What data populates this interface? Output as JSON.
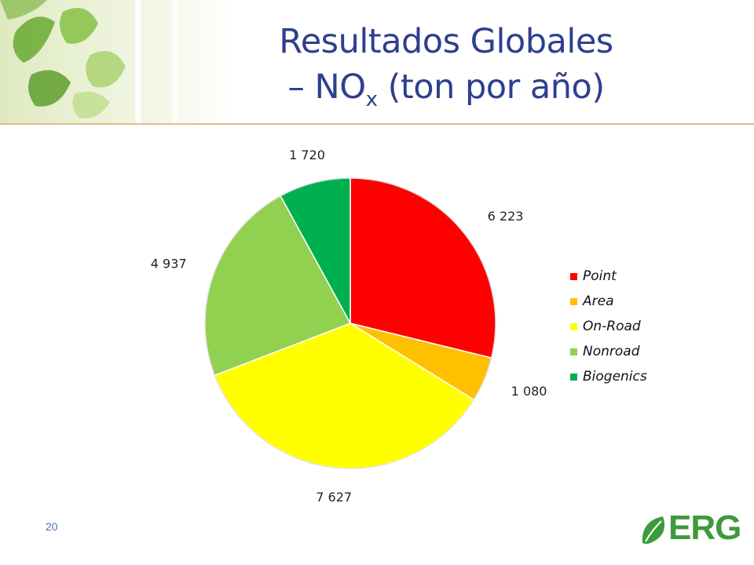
{
  "slide": {
    "title_line1": "Resultados Globales",
    "title_line2_prefix": "– NO",
    "title_line2_sub": "x",
    "title_line2_suffix": " (ton por año)",
    "page_number": "20",
    "logo_text": "ERG"
  },
  "chart_data": {
    "type": "pie",
    "categories": [
      "Point",
      "Area",
      "On-Road",
      "Nonroad",
      "Biogenics"
    ],
    "values": [
      6223,
      1080,
      7627,
      4937,
      1720
    ],
    "value_labels": [
      "6 223",
      "1 080",
      "7 627",
      "4 937",
      "1 720"
    ],
    "colors": [
      "#ff0000",
      "#ffc000",
      "#ffff00",
      "#92d050",
      "#00b050"
    ],
    "legend_position": "right"
  }
}
